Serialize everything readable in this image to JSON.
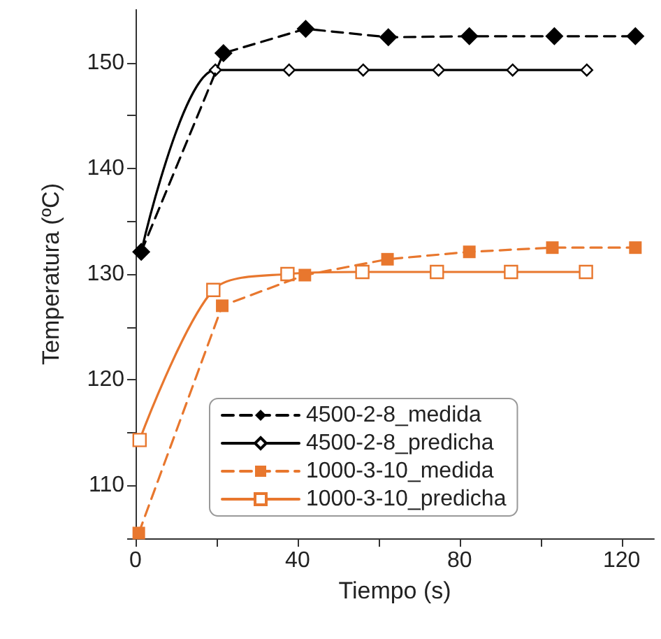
{
  "chart_data": {
    "type": "line",
    "xlabel": "Tiempo (s)",
    "ylabel": "Temperatura (ºC)",
    "xlim": [
      0,
      128
    ],
    "xticks": [
      0,
      {
        "value": 20,
        "label": null
      },
      40,
      {
        "value": 60,
        "label": null
      },
      80,
      {
        "value": 100,
        "label": null
      },
      120
    ],
    "ylim": [
      105,
      155
    ],
    "yticks": [
      {
        "value": 105,
        "label": null
      },
      110,
      {
        "value": 115,
        "label": null
      },
      120,
      {
        "value": 125,
        "label": null
      },
      130,
      {
        "value": 135,
        "label": null
      },
      140,
      {
        "value": 145,
        "label": null
      },
      150
    ],
    "grid": false,
    "legend": "bottom",
    "series": [
      {
        "name": "4500-2-8_medida",
        "color": "#000000",
        "line_style": "dashed",
        "marker": "diamond",
        "x": [
          1.4,
          21.7,
          42,
          62.4,
          82.4,
          103.4,
          123.4
        ],
        "values": [
          132.1,
          150.9,
          153.2,
          152.4,
          152.5,
          152.5,
          152.5
        ]
      },
      {
        "name": "4500-2-8_predicha",
        "color": "#000000",
        "line_style": "solid",
        "marker": "diamond",
        "x": [
          1.4,
          19.7,
          37.9,
          56.2,
          74.8,
          93.1,
          111.4
        ],
        "values": [
          132.1,
          149.3,
          149.3,
          149.3,
          149.3,
          149.3,
          149.3
        ]
      },
      {
        "name": "1000-3-10_medida",
        "color": "#e8772e",
        "line_style": "dashed",
        "marker": "square",
        "x": [
          0.8,
          21.4,
          41.8,
          62.2,
          82.4,
          102.9,
          123.4
        ],
        "values": [
          105.5,
          127.0,
          129.9,
          131.4,
          132.1,
          132.5,
          132.5
        ]
      },
      {
        "name": "1000-3-10_predicha",
        "color": "#e8772e",
        "line_style": "solid",
        "marker": "square",
        "x": [
          1,
          19.2,
          37.5,
          56,
          74.4,
          92.7,
          111.2
        ],
        "values": [
          114.3,
          128.5,
          130.0,
          130.2,
          130.2,
          130.2,
          130.2
        ]
      }
    ]
  }
}
